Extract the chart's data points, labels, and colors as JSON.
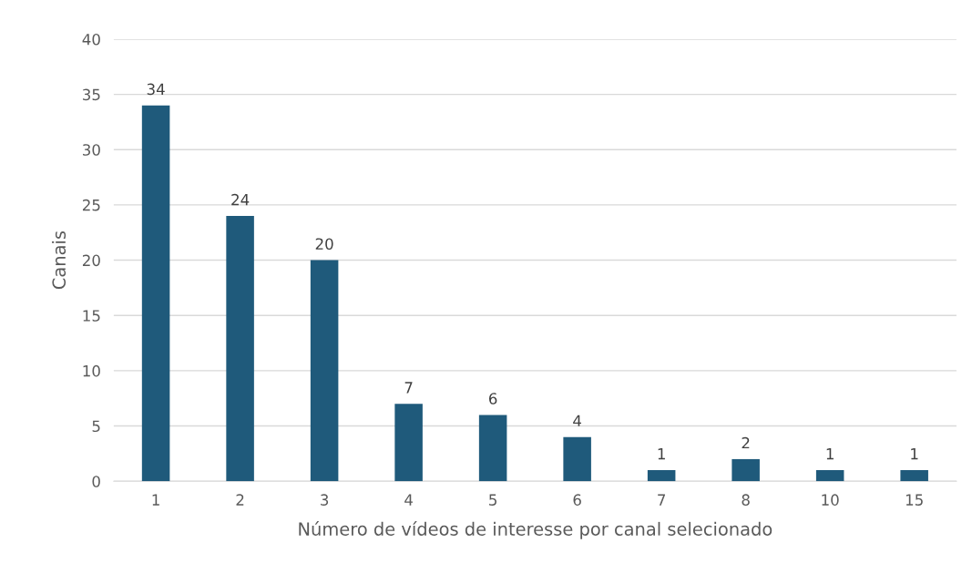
{
  "chart_data": {
    "type": "bar",
    "xlabel": "Número de vídeos de interesse por canal selecionado",
    "ylabel": "Canais",
    "categories": [
      "1",
      "2",
      "3",
      "4",
      "5",
      "6",
      "7",
      "8",
      "10",
      "15"
    ],
    "values": [
      34,
      24,
      20,
      7,
      6,
      4,
      1,
      2,
      1,
      1
    ],
    "color": "#1f5a7b",
    "ylim": [
      0,
      40
    ],
    "yticks": [
      0,
      5,
      10,
      15,
      20,
      25,
      30,
      35,
      40
    ],
    "grid": "y",
    "data_labels": true
  }
}
